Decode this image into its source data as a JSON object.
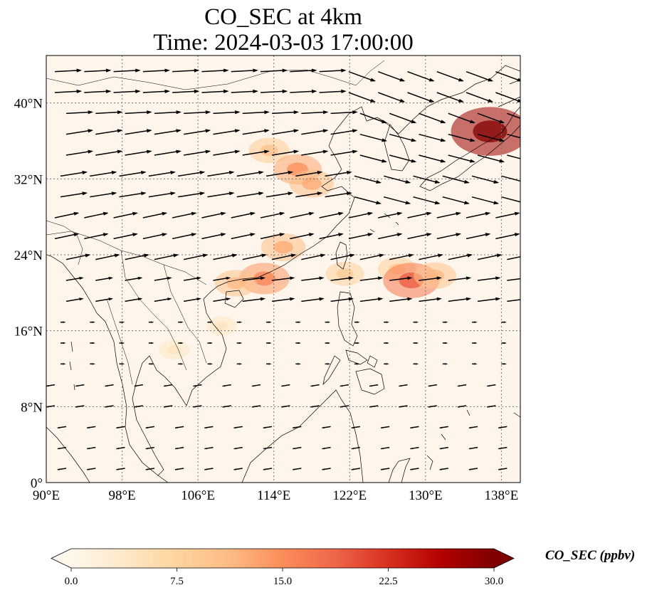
{
  "title": {
    "line1": "CO_SEC at 4km",
    "line2": "Time: 2024-03-03 17:00:00"
  },
  "map": {
    "extent": {
      "lon": [
        90,
        140
      ],
      "lat": [
        0,
        45
      ]
    },
    "lon_ticks": [
      {
        "value": 90,
        "label": "90°E"
      },
      {
        "value": 98,
        "label": "98°E"
      },
      {
        "value": 106,
        "label": "106°E"
      },
      {
        "value": 114,
        "label": "114°E"
      },
      {
        "value": 122,
        "label": "122°E"
      },
      {
        "value": 130,
        "label": "130°E"
      },
      {
        "value": 138,
        "label": "138°E"
      }
    ],
    "lat_ticks": [
      {
        "value": 0,
        "label": "0°"
      },
      {
        "value": 8,
        "label": "8°N"
      },
      {
        "value": 16,
        "label": "16°N"
      },
      {
        "value": 24,
        "label": "24°N"
      },
      {
        "value": 32,
        "label": "32°N"
      },
      {
        "value": 40,
        "label": "40°N"
      }
    ],
    "gridlines": true,
    "background_color": "#fff5eb",
    "coastline_color": "#000000",
    "plumes": [
      {
        "lon": 113.5,
        "lat": 35.0,
        "value": 9
      },
      {
        "lon": 116.5,
        "lat": 33.0,
        "value": 13
      },
      {
        "lon": 118.0,
        "lat": 31.5,
        "value": 11
      },
      {
        "lon": 115.0,
        "lat": 24.8,
        "value": 11
      },
      {
        "lon": 113.0,
        "lat": 21.5,
        "value": 14
      },
      {
        "lon": 110.0,
        "lat": 21.0,
        "value": 10
      },
      {
        "lon": 121.5,
        "lat": 22.0,
        "value": 8
      },
      {
        "lon": 127.0,
        "lat": 22.5,
        "value": 8
      },
      {
        "lon": 128.5,
        "lat": 21.3,
        "value": 17
      },
      {
        "lon": 131.0,
        "lat": 21.8,
        "value": 10
      },
      {
        "lon": 136.8,
        "lat": 37.0,
        "value": 28
      },
      {
        "lon": 103.5,
        "lat": 14.0,
        "value": 4
      },
      {
        "lon": 108.5,
        "lat": 16.5,
        "value": 4
      }
    ]
  },
  "colorbar": {
    "label": "CO_SEC (ppbv)",
    "vmin": 0,
    "vmax": 30,
    "ticks": [
      "0.0",
      "7.5",
      "15.0",
      "22.5",
      "30.0"
    ],
    "colormap": "OrRd",
    "colors": [
      "#fff7ec",
      "#fee8c8",
      "#fdd49e",
      "#fdbb84",
      "#fc8d59",
      "#ef6548",
      "#d7301f",
      "#b30000",
      "#7f0000"
    ]
  }
}
